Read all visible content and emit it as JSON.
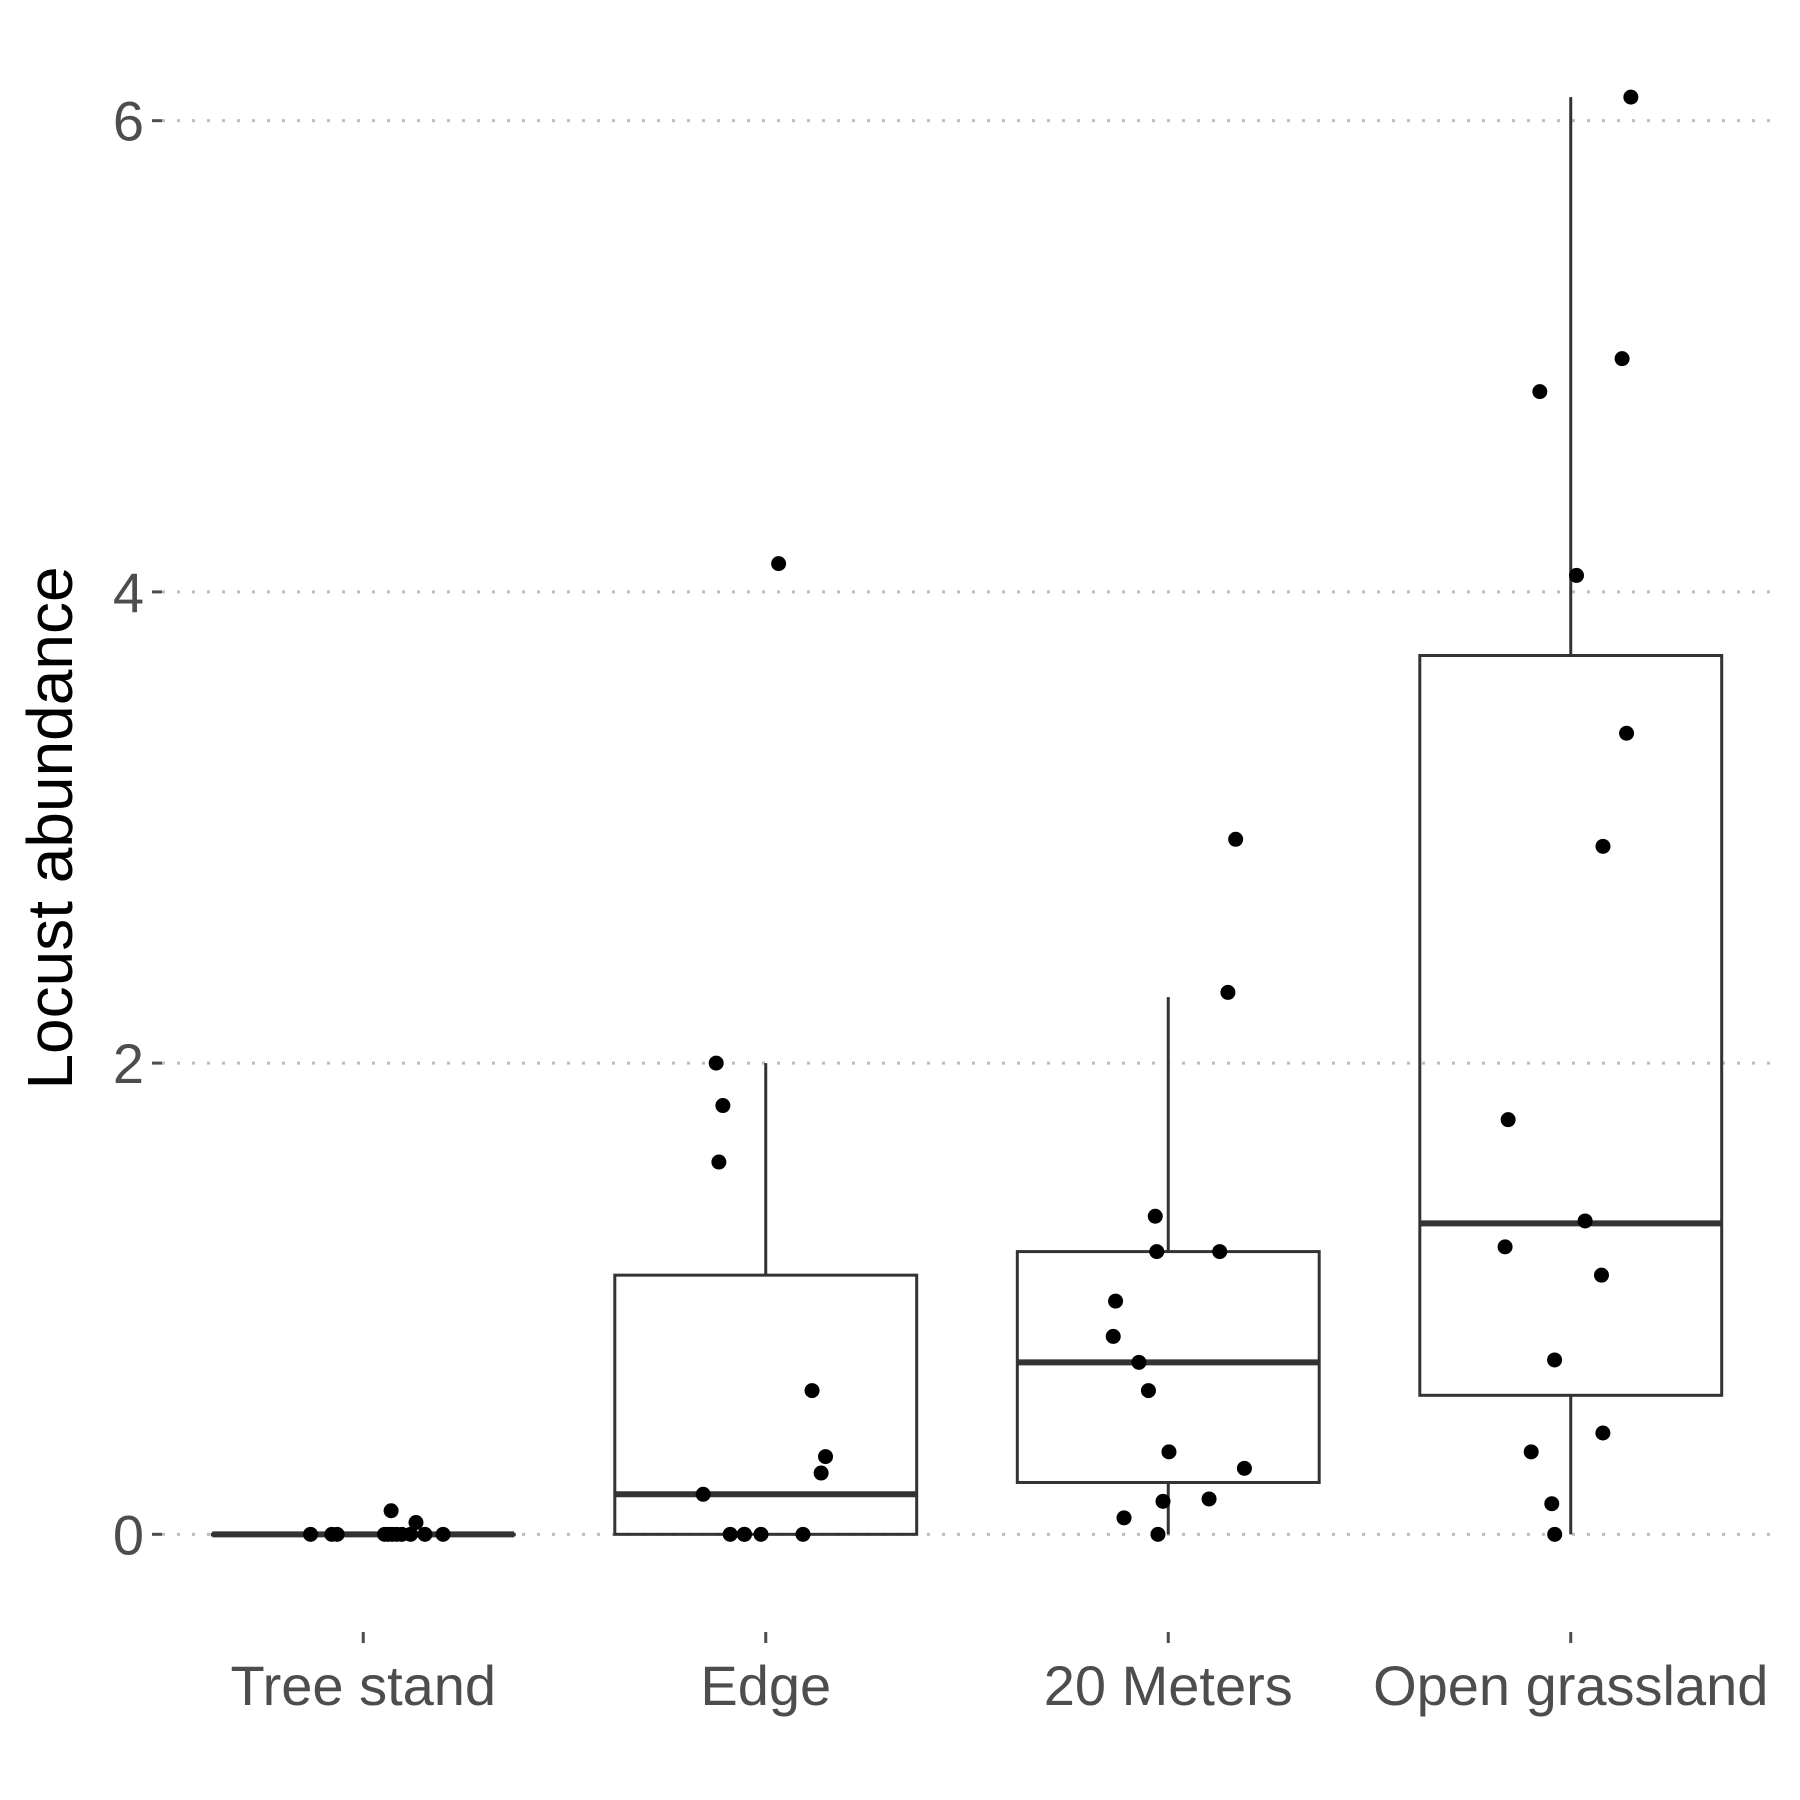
{
  "chart_data": {
    "type": "boxplot",
    "title": "",
    "xlabel": "",
    "ylabel": "Locust abundance",
    "ylim": [
      -0.3,
      6.3
    ],
    "yticks": [
      0,
      2,
      4,
      6
    ],
    "grid": "horizontal dotted major gridlines",
    "legend": "none",
    "categories": [
      "Tree stand",
      "Edge",
      "20 Meters",
      "Open grassland"
    ],
    "boxes": [
      {
        "category": "Tree stand",
        "min": 0,
        "q1": 0,
        "median": 0,
        "q3": 0,
        "max": 0
      },
      {
        "category": "Edge",
        "min": 0,
        "q1": 0,
        "median": 0.17,
        "q3": 1.1,
        "max": 2.0
      },
      {
        "category": "20 Meters",
        "min": 0,
        "q1": 0.22,
        "median": 0.73,
        "q3": 1.2,
        "max": 2.28
      },
      {
        "category": "Open grassland",
        "min": 0,
        "q1": 0.59,
        "median": 1.32,
        "q3": 3.73,
        "max": 6.1
      }
    ],
    "points": [
      {
        "category": "Tree stand",
        "values": [
          0,
          0,
          0,
          0,
          0,
          0.1,
          0,
          0,
          0,
          0.05,
          0,
          0,
          0
        ]
      },
      {
        "category": "Edge",
        "values": [
          2.0,
          4.12,
          1.82,
          1.58,
          0.61,
          0.33,
          0.26,
          0.17,
          0,
          0,
          0,
          0,
          0
        ]
      },
      {
        "category": "20 Meters",
        "values": [
          2.95,
          2.3,
          1.35,
          1.2,
          1.2,
          0.99,
          0.84,
          0.73,
          0.61,
          0.35,
          0.28,
          0.14,
          0.15,
          0.07,
          0
        ]
      },
      {
        "category": "Open grassland",
        "values": [
          6.1,
          4.99,
          4.85,
          4.07,
          3.4,
          2.92,
          1.76,
          1.33,
          1.22,
          1.1,
          0.74,
          0.43,
          0.35,
          0.13,
          0
        ]
      }
    ]
  },
  "colors": {
    "box_stroke": "#333333",
    "point": "#000000",
    "grid": "#bdbdbd",
    "tick_text": "#4d4d4d",
    "axis_title": "#000000"
  }
}
